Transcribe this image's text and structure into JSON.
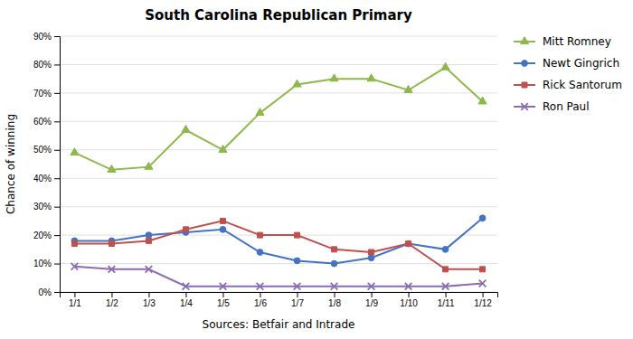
{
  "chart_data": {
    "type": "line",
    "title": "South Carolina Republican Primary",
    "xlabel": "Sources: Betfair and Intrade",
    "ylabel": "Chance of winning",
    "categories": [
      "1/1",
      "1/2",
      "1/3",
      "1/4",
      "1/5",
      "1/6",
      "1/7",
      "1/8",
      "1/9",
      "1/10",
      "1/11",
      "1/12"
    ],
    "series": [
      {
        "name": "Mitt Romney",
        "color": "#8DB84A",
        "marker": "triangle",
        "values": [
          0.49,
          0.43,
          0.44,
          0.57,
          0.5,
          0.63,
          0.73,
          0.75,
          0.75,
          0.71,
          0.79,
          0.67
        ]
      },
      {
        "name": "Newt Gingrich",
        "color": "#4472C4",
        "marker": "circle",
        "values": [
          0.18,
          0.18,
          0.2,
          0.21,
          0.22,
          0.14,
          0.11,
          0.1,
          0.12,
          0.17,
          0.15,
          0.26
        ]
      },
      {
        "name": "Rick Santorum",
        "color": "#C0504D",
        "marker": "square",
        "values": [
          0.17,
          0.17,
          0.18,
          0.22,
          0.25,
          0.2,
          0.2,
          0.15,
          0.14,
          0.17,
          0.08,
          0.08
        ]
      },
      {
        "name": "Ron Paul",
        "color": "#8B6DB0",
        "marker": "x",
        "values": [
          0.09,
          0.08,
          0.08,
          0.02,
          0.02,
          0.02,
          0.02,
          0.02,
          0.02,
          0.02,
          0.02,
          0.03
        ]
      }
    ],
    "ylim": [
      0.0,
      0.9
    ],
    "yticks": [
      {
        "value": 0.0,
        "label": "0%"
      },
      {
        "value": 0.1,
        "label": "10%"
      },
      {
        "value": 0.2,
        "label": "20%"
      },
      {
        "value": 0.3,
        "label": "30%"
      },
      {
        "value": 0.4,
        "label": "40%"
      },
      {
        "value": 0.5,
        "label": "50%"
      },
      {
        "value": 0.6,
        "label": "60%"
      },
      {
        "value": 0.7,
        "label": "70%"
      },
      {
        "value": 0.8,
        "label": "80%"
      },
      {
        "value": 0.9,
        "label": "90%"
      }
    ],
    "grid": true,
    "legend": "right"
  }
}
